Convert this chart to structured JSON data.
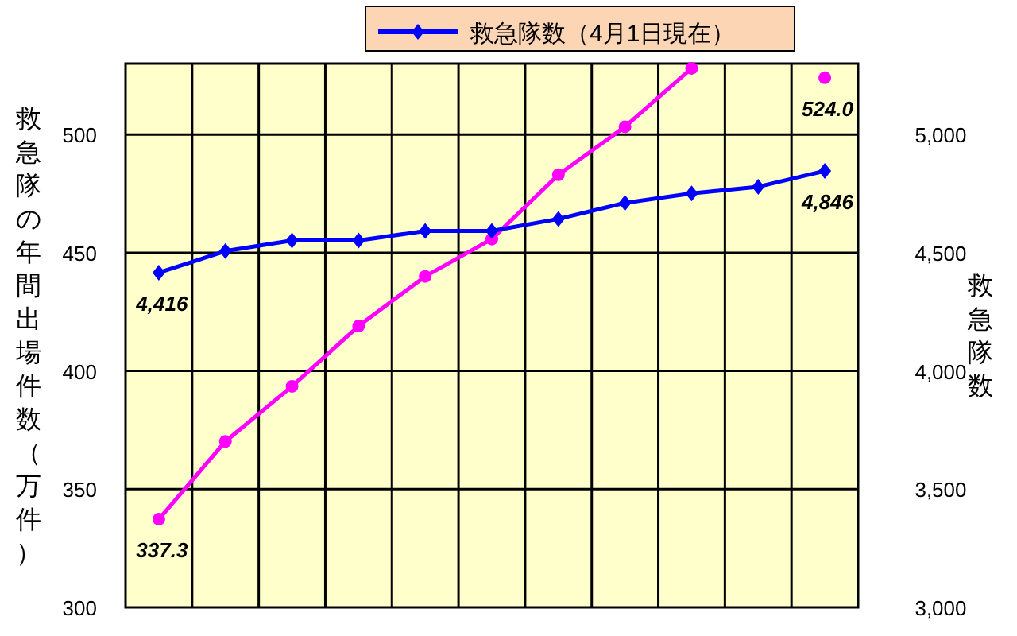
{
  "chart_data": {
    "type": "line",
    "ylabel": "救急隊の年間出場件数（万件）",
    "y2label": "救急隊数",
    "categories": [
      null,
      null,
      null,
      null,
      null,
      null,
      null,
      null,
      null,
      null,
      null
    ],
    "series": [
      {
        "color": "#ff00ff",
        "marker": "circle",
        "values": [
          337.3,
          370.2,
          393.5,
          419,
          440,
          455.8,
          483,
          503.3,
          528,
          null,
          524.0
        ],
        "value_labels": [
          "337.3",
          null,
          null,
          null,
          null,
          null,
          null,
          null,
          null,
          null,
          "524.0"
        ]
      },
      {
        "name": "救急隊数（4月1日現在）",
        "color": "#0000ff",
        "marker": "diamond",
        "axis": "y2",
        "values": [
          4416,
          4507,
          4552,
          4552,
          4592,
          4592,
          4643,
          4711,
          4751,
          4779,
          4846
        ],
        "value_labels": [
          "4,416",
          null,
          null,
          null,
          null,
          null,
          null,
          null,
          null,
          null,
          "4,846"
        ]
      }
    ],
    "ylim": [
      300,
      530
    ],
    "yticks": [
      300,
      350,
      400,
      450,
      500
    ],
    "y2lim": [
      3000,
      5300
    ],
    "y2ticks": [
      {
        "value": 3000,
        "label": "3,000"
      },
      {
        "value": 3500,
        "label": "3,500"
      },
      {
        "value": 4000,
        "label": "4,000"
      },
      {
        "value": 4500,
        "label": "4,500"
      },
      {
        "value": 5000,
        "label": "5,000"
      }
    ],
    "grid": true,
    "legend": "top"
  }
}
